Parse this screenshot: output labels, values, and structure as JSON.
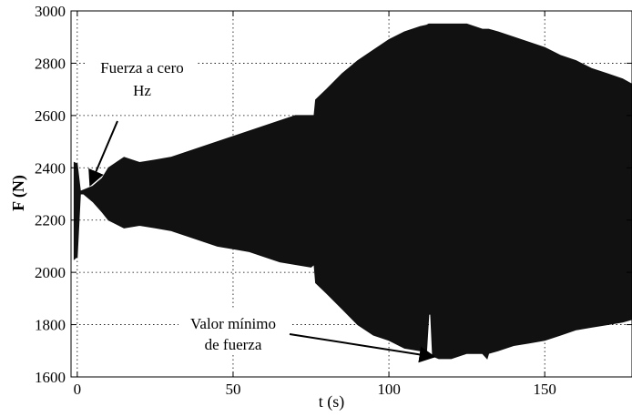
{
  "chart_data": {
    "type": "area",
    "title": "",
    "xlabel": "t (s)",
    "ylabel": "F (N)",
    "xlim": [
      -2,
      178
    ],
    "ylim": [
      1600,
      3000
    ],
    "xticks": [
      0,
      50,
      100,
      150
    ],
    "yticks": [
      1600,
      1800,
      2000,
      2200,
      2400,
      2600,
      2800,
      3000
    ],
    "grid": "dotted",
    "legend": "none",
    "fill_color": "#111111",
    "series": [
      {
        "x": [
          -1.0,
          0,
          1,
          2,
          5,
          8,
          10,
          15,
          20,
          25,
          30,
          35,
          40,
          45,
          50,
          55,
          60,
          65,
          70,
          75,
          76,
          76.5,
          80,
          85,
          90,
          95,
          100,
          105,
          110,
          112,
          112.8,
          113.4,
          114,
          116,
          118,
          120,
          125,
          130,
          131.5,
          132,
          135,
          140,
          145,
          150,
          155,
          160,
          165,
          170,
          175,
          178
        ],
        "upper": [
          2420,
          2415,
          2310,
          2315,
          2330,
          2360,
          2400,
          2440,
          2420,
          2430,
          2440,
          2460,
          2480,
          2500,
          2520,
          2540,
          2560,
          2580,
          2600,
          2600,
          2600,
          2660,
          2700,
          2760,
          2810,
          2850,
          2890,
          2920,
          2940,
          2945,
          2950,
          2950,
          2950,
          2950,
          2950,
          2950,
          2950,
          2930,
          2930,
          2930,
          2920,
          2900,
          2880,
          2860,
          2830,
          2810,
          2780,
          2760,
          2740,
          2720
        ],
        "lower": [
          2050,
          2060,
          2300,
          2300,
          2270,
          2230,
          2200,
          2170,
          2180,
          2170,
          2160,
          2140,
          2120,
          2100,
          2090,
          2080,
          2060,
          2040,
          2030,
          2020,
          2030,
          1960,
          1920,
          1860,
          1800,
          1760,
          1740,
          1710,
          1700,
          1680,
          1840,
          1840,
          1680,
          1670,
          1670,
          1670,
          1690,
          1690,
          1670,
          1690,
          1700,
          1720,
          1730,
          1740,
          1760,
          1780,
          1790,
          1800,
          1810,
          1820
        ]
      }
    ],
    "annotations": [
      {
        "text_lines": [
          "Fuerza a cero",
          "Hz"
        ],
        "arrow_to": [
          3,
          2320
        ]
      },
      {
        "text_lines": [
          "Valor mínimo",
          "de fuerza"
        ],
        "arrow_to": [
          114.5,
          1670
        ]
      }
    ]
  }
}
